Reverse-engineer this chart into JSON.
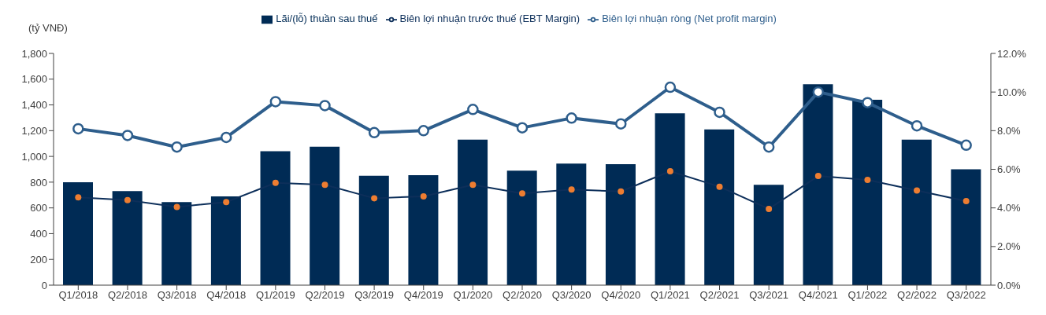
{
  "chart_data": {
    "type": "bar",
    "ylabel": "(tỷ VNĐ)",
    "categories": [
      "Q1/2018",
      "Q2/2018",
      "Q3/2018",
      "Q4/2018",
      "Q1/2019",
      "Q2/2019",
      "Q3/2019",
      "Q4/2019",
      "Q1/2020",
      "Q2/2020",
      "Q3/2020",
      "Q4/2020",
      "Q1/2021",
      "Q2/2021",
      "Q3/2021",
      "Q4/2021",
      "Q1/2022",
      "Q2/2022",
      "Q3/2022"
    ],
    "series": [
      {
        "name": "Lãi/(lỗ) thuần sau thuế",
        "color": "#002b55",
        "values": [
          800,
          730,
          645,
          690,
          1040,
          1075,
          850,
          855,
          1130,
          890,
          945,
          940,
          1335,
          1210,
          780,
          1560,
          1440,
          1130,
          900
        ]
      },
      {
        "name": "Biên lợi nhuận trước thuế (EBT Margin)",
        "type": "line",
        "axis": "y2",
        "color": "#0d2f5a",
        "marker": "circle",
        "colors": [
          "#ed7d31",
          "#ed7d31",
          "#ed7d31",
          "#ed7d31",
          "#ed7d31",
          "#ed7d31",
          "#ed7d31",
          "#ed7d31",
          "#ed7d31",
          "#ed7d31",
          "#ed7d31",
          "#ed7d31",
          "#ed7d31",
          "#ed7d31",
          "#ed7d31",
          "#ed7d31",
          "#ed7d31",
          "#ed7d31",
          "#ed7d31"
        ],
        "values": [
          4.55,
          4.4,
          4.05,
          4.3,
          5.3,
          5.2,
          4.5,
          4.6,
          5.2,
          4.75,
          4.95,
          4.85,
          5.9,
          5.1,
          3.95,
          5.65,
          5.45,
          4.9,
          4.35
        ]
      },
      {
        "name": "Biên lợi nhuận ròng (Net profit margin)",
        "type": "line",
        "axis": "y2",
        "color": "#2e5e8c",
        "marker": "circle",
        "values": [
          8.1,
          7.75,
          7.15,
          7.65,
          9.5,
          9.3,
          7.9,
          8.0,
          9.1,
          8.15,
          8.65,
          8.35,
          10.25,
          8.95,
          7.15,
          10.0,
          9.45,
          8.25,
          7.25
        ]
      }
    ],
    "ylim": [
      0,
      1800
    ],
    "yticks": [
      0,
      200,
      400,
      600,
      800,
      {
        "value": 1000,
        "label": "1,000"
      },
      {
        "value": 1200,
        "label": "1,200"
      },
      {
        "value": 1400,
        "label": "1,400"
      },
      {
        "value": 1600,
        "label": "1,600"
      },
      {
        "value": 1800,
        "label": "1,800"
      }
    ],
    "y2lim": [
      0,
      12
    ],
    "y2ticks": [
      {
        "value": 0,
        "label": "0.0%"
      },
      {
        "value": 2,
        "label": "2.0%"
      },
      {
        "value": 4,
        "label": "4.0%"
      },
      {
        "value": 6,
        "label": "6.0%"
      },
      {
        "value": 8,
        "label": "8.0%"
      },
      {
        "value": 10,
        "label": "10.0%"
      },
      {
        "value": 12,
        "label": "12.0%"
      }
    ],
    "grid": false,
    "legend": "top"
  }
}
